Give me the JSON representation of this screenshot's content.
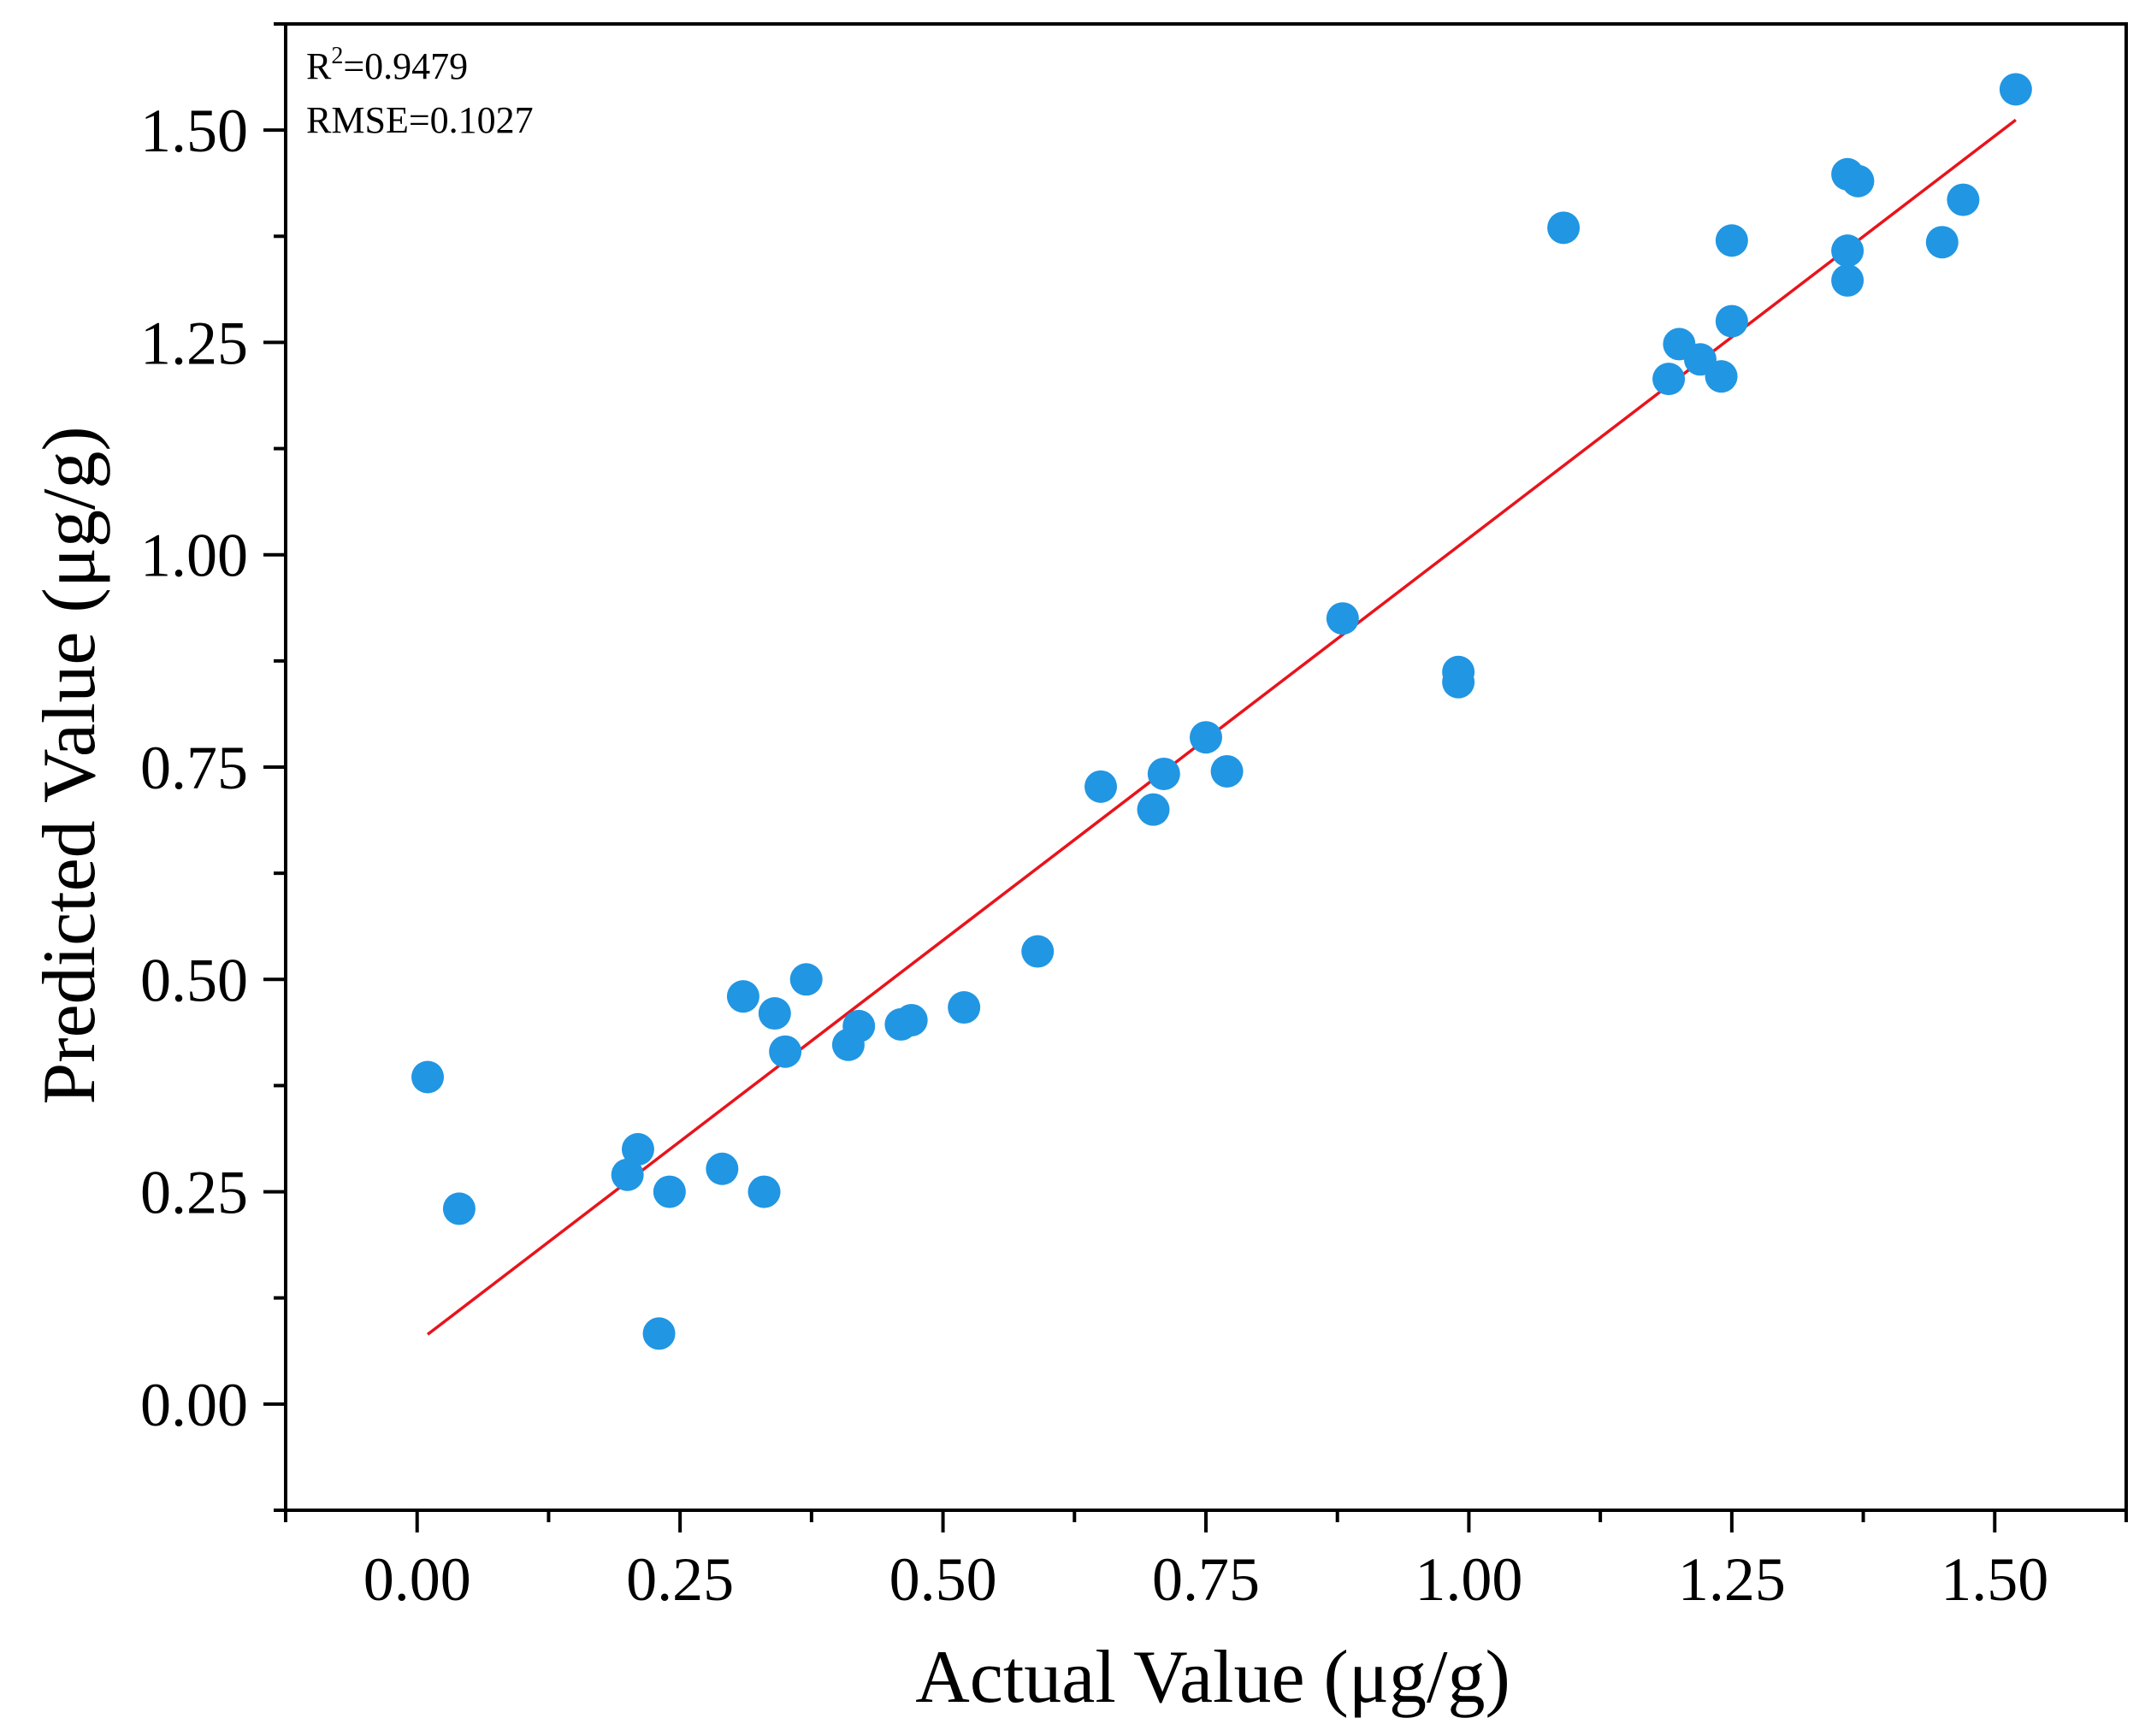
{
  "chart_data": {
    "type": "scatter",
    "title": "",
    "xlabel": "Actual Value (μg/g)",
    "ylabel": "Predicted Value (μg/g)",
    "xlim": [
      -0.125,
      1.625
    ],
    "ylim": [
      -0.125,
      1.625
    ],
    "xticks": [
      0.0,
      0.25,
      0.5,
      0.75,
      1.0,
      1.25,
      1.5
    ],
    "xtick_labels": [
      "0.00",
      "0.25",
      "0.50",
      "0.75",
      "1.00",
      "1.25",
      "1.50"
    ],
    "yticks": [
      0.0,
      0.25,
      0.5,
      0.75,
      1.0,
      1.25,
      1.5
    ],
    "ytick_labels": [
      "0.00",
      "0.25",
      "0.50",
      "0.75",
      "1.00",
      "1.25",
      "1.50"
    ],
    "annotations": {
      "r2_label": "R",
      "r2_sup": "2",
      "r2_value": "=0.9479",
      "rmse": "RMSE=0.1027"
    },
    "colors": {
      "points": "#2196e3",
      "fit_line": "#e8141c",
      "axis": "#000000"
    },
    "fit_line": {
      "x": [
        0.01,
        1.52
      ],
      "y": [
        0.082,
        1.512
      ]
    },
    "series": [
      {
        "name": "samples",
        "points": [
          [
            0.01,
            0.385
          ],
          [
            0.04,
            0.23
          ],
          [
            0.2,
            0.27
          ],
          [
            0.21,
            0.3
          ],
          [
            0.23,
            0.083
          ],
          [
            0.24,
            0.25
          ],
          [
            0.29,
            0.277
          ],
          [
            0.31,
            0.48
          ],
          [
            0.33,
            0.25
          ],
          [
            0.34,
            0.46
          ],
          [
            0.35,
            0.415
          ],
          [
            0.37,
            0.5
          ],
          [
            0.41,
            0.423
          ],
          [
            0.42,
            0.445
          ],
          [
            0.46,
            0.447
          ],
          [
            0.47,
            0.452
          ],
          [
            0.52,
            0.467
          ],
          [
            0.59,
            0.533
          ],
          [
            0.65,
            0.727
          ],
          [
            0.7,
            0.7
          ],
          [
            0.71,
            0.742
          ],
          [
            0.75,
            0.785
          ],
          [
            0.77,
            0.745
          ],
          [
            0.88,
            0.925
          ],
          [
            0.99,
            0.862
          ],
          [
            0.99,
            0.85
          ],
          [
            1.09,
            1.385
          ],
          [
            1.19,
            1.207
          ],
          [
            1.2,
            1.248
          ],
          [
            1.22,
            1.23
          ],
          [
            1.24,
            1.21
          ],
          [
            1.25,
            1.275
          ],
          [
            1.25,
            1.37
          ],
          [
            1.36,
            1.358
          ],
          [
            1.36,
            1.448
          ],
          [
            1.37,
            1.44
          ],
          [
            1.36,
            1.323
          ],
          [
            1.45,
            1.368
          ],
          [
            1.47,
            1.418
          ],
          [
            1.52,
            1.548
          ]
        ]
      }
    ]
  }
}
